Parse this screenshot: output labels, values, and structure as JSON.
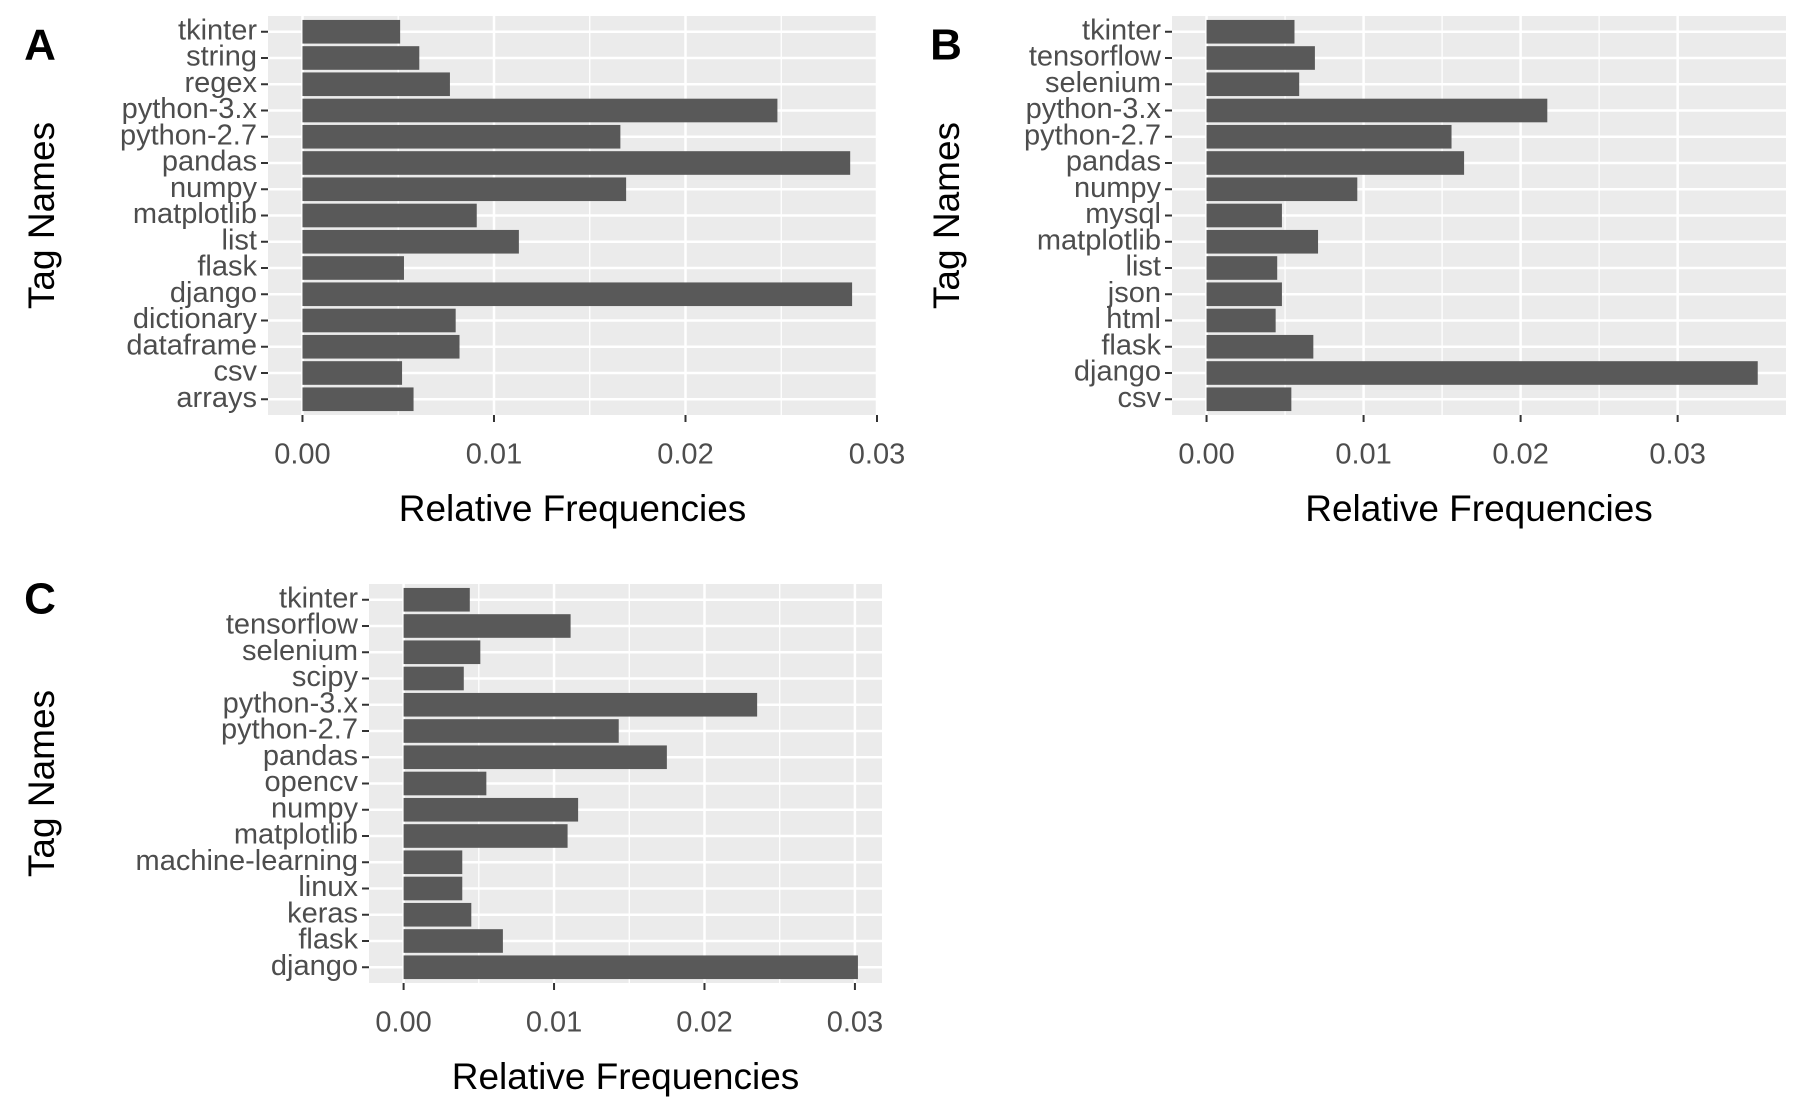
{
  "chart_data": [
    {
      "type": "barh",
      "title": "A",
      "xlabel": "Relative Frequencies",
      "ylabel": "Tag Names",
      "categories": [
        "tkinter",
        "string",
        "regex",
        "python-3.x",
        "python-2.7",
        "pandas",
        "numpy",
        "matplotlib",
        "list",
        "flask",
        "django",
        "dictionary",
        "dataframe",
        "csv",
        "arrays"
      ],
      "values": [
        0.0051,
        0.0061,
        0.0077,
        0.0248,
        0.0166,
        0.0286,
        0.0169,
        0.0091,
        0.0113,
        0.0053,
        0.0287,
        0.008,
        0.0082,
        0.0052,
        0.0058
      ],
      "color": "#595959",
      "xlim": [
        -0.0018,
        0.03
      ],
      "xticks": [
        {
          "value": 0,
          "label": "0.00"
        },
        0.01,
        0.02,
        0.03
      ],
      "grid": true
    },
    {
      "type": "barh",
      "title": "B",
      "xlabel": "Relative Frequencies",
      "ylabel": "Tag Names",
      "categories": [
        "tkinter",
        "tensorflow",
        "selenium",
        "python-3.x",
        "python-2.7",
        "pandas",
        "numpy",
        "mysql",
        "matplotlib",
        "list",
        "json",
        "html",
        "flask",
        "django",
        "csv"
      ],
      "values": [
        0.0056,
        0.0069,
        0.0059,
        0.0217,
        0.0156,
        0.0164,
        0.0096,
        0.0048,
        0.0071,
        0.0045,
        0.0048,
        0.0044,
        0.0068,
        0.0351,
        0.0054
      ],
      "color": "#595959",
      "xlim": [
        -0.0022,
        0.0369
      ],
      "xticks": [
        {
          "value": 0,
          "label": "0.00"
        },
        0.01,
        0.02,
        0.03
      ],
      "grid": true
    },
    {
      "type": "barh",
      "title": "C",
      "xlabel": "Relative Frequencies",
      "ylabel": "Tag Names",
      "categories": [
        "tkinter",
        "tensorflow",
        "selenium",
        "scipy",
        "python-3.x",
        "python-2.7",
        "pandas",
        "opencv",
        "numpy",
        "matplotlib",
        "machine-learning",
        "linux",
        "keras",
        "flask",
        "django"
      ],
      "values": [
        0.0044,
        0.0111,
        0.0051,
        0.004,
        0.0235,
        0.0143,
        0.0175,
        0.0055,
        0.0116,
        0.0109,
        0.0039,
        0.0039,
        0.0045,
        0.0066,
        0.0302
      ],
      "color": "#595959",
      "xlim": [
        -0.0023,
        0.0318
      ],
      "xticks": [
        {
          "value": 0,
          "label": "0.00"
        },
        0.01,
        0.02,
        0.03
      ],
      "grid": true
    }
  ]
}
